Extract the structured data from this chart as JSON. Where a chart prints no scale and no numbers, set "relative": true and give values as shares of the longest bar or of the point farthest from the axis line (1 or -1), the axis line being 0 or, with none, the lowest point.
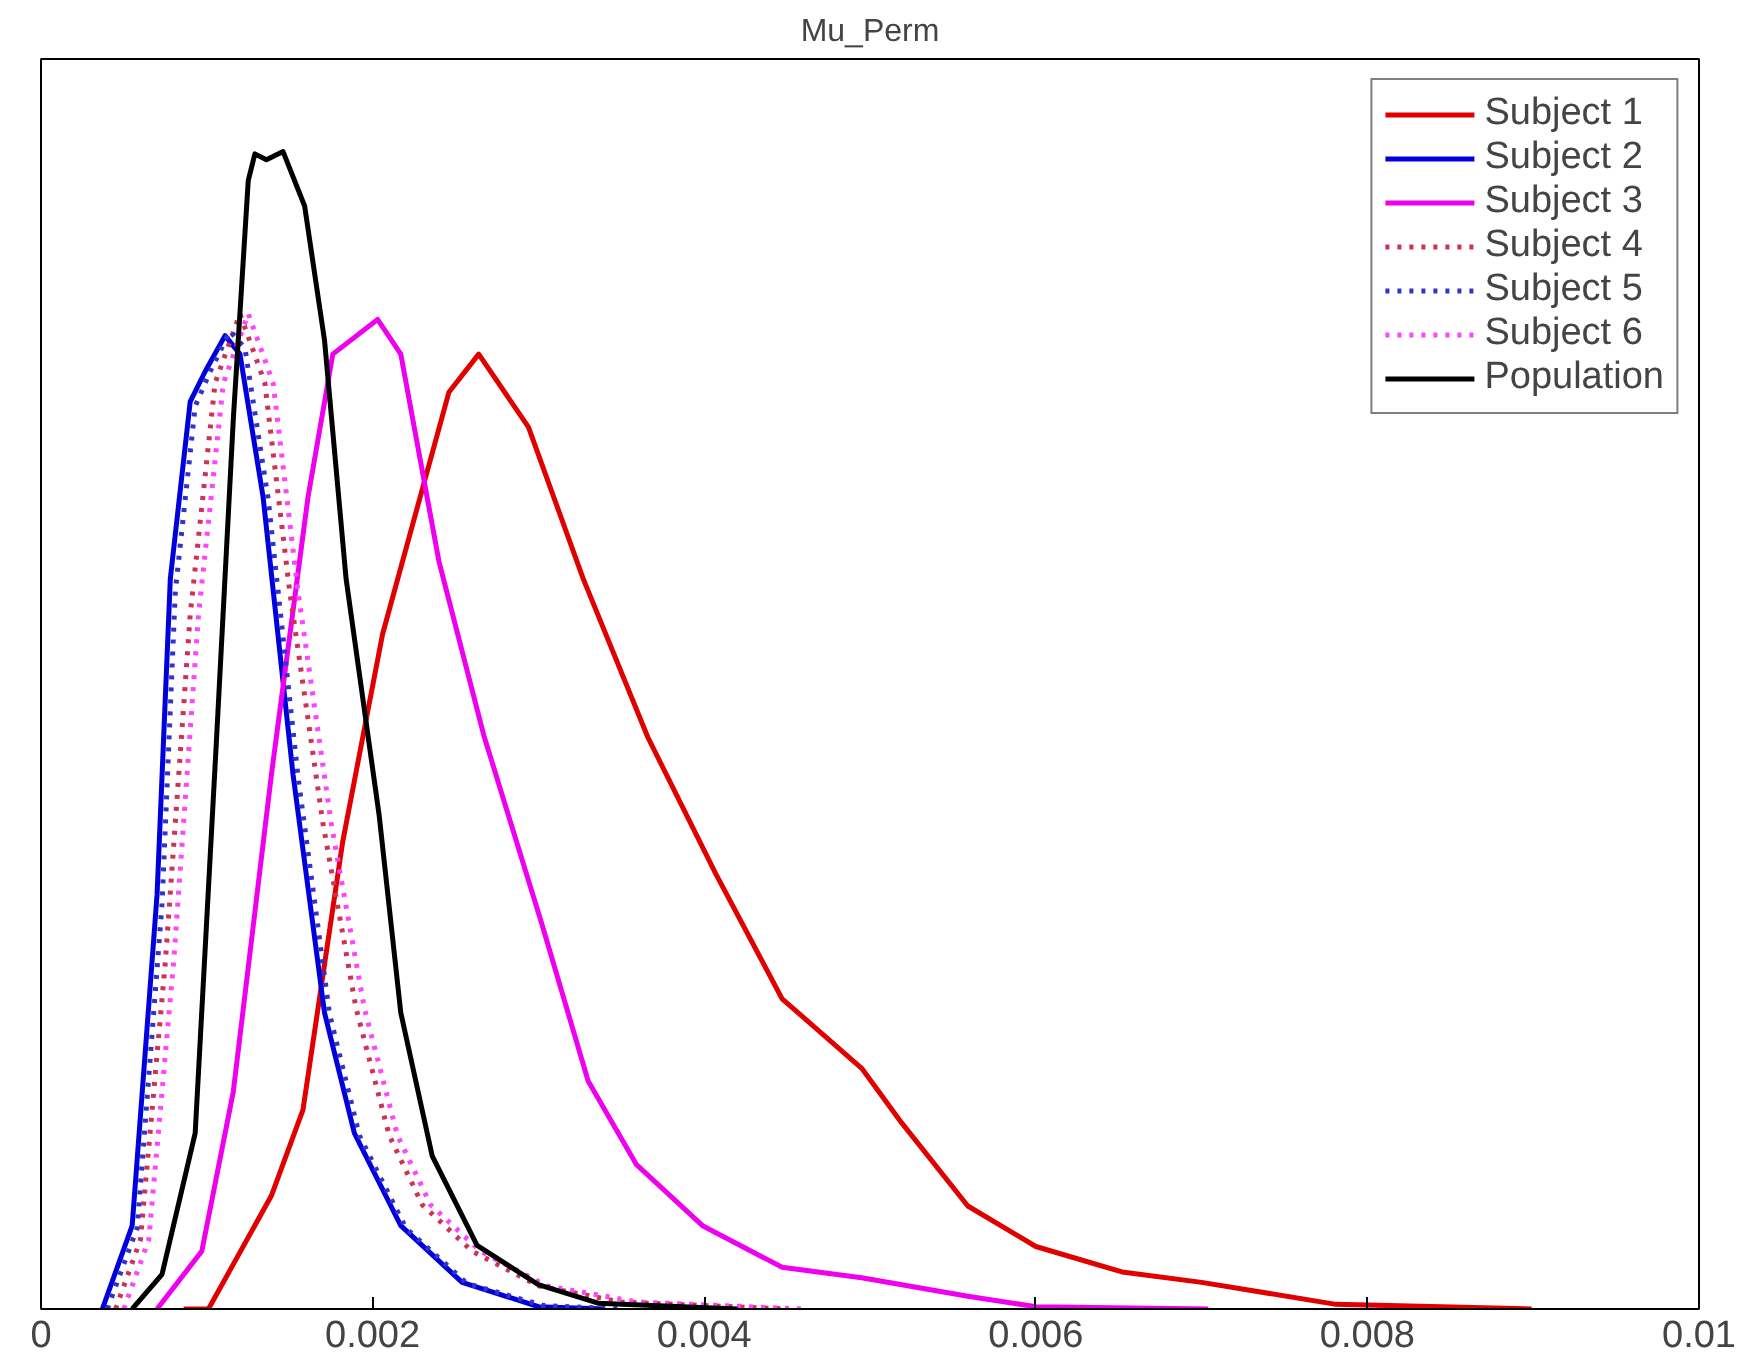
{
  "chart_data": {
    "type": "line",
    "title": "Mu_Perm",
    "relative": true,
    "xlim": [
      0,
      0.01
    ],
    "xticks": [
      0,
      0.002,
      0.004,
      0.006,
      0.008,
      0.01
    ],
    "grid": false,
    "legend": "top right",
    "line_style": "solid",
    "series": [
      {
        "name": "Subject 1",
        "color": "#e00000",
        "x": [
          0.00086,
          0.00101,
          0.00139,
          0.00158,
          0.00182,
          0.00206,
          0.00246,
          0.00264,
          0.00294,
          0.00327,
          0.00366,
          0.00407,
          0.00447,
          0.00495,
          0.00519,
          0.00559,
          0.006,
          0.00652,
          0.007,
          0.00781,
          0.00899
        ],
        "values": [
          0,
          0,
          0.098,
          0.172,
          0.404,
          0.583,
          0.792,
          0.825,
          0.762,
          0.631,
          0.494,
          0.376,
          0.268,
          0.208,
          0.161,
          0.089,
          0.054,
          0.032,
          0.023,
          0.004,
          0
        ]
      },
      {
        "name": "Subject 2",
        "color": "#0000dd",
        "x": [
          0.00037,
          0.00055,
          0.0007,
          0.00078,
          0.0009,
          0.00099,
          0.00111,
          0.0012,
          0.00134,
          0.00152,
          0.00171,
          0.00189,
          0.00217,
          0.00254,
          0.003,
          0.0034
        ],
        "values": [
          0,
          0.072,
          0.358,
          0.631,
          0.784,
          0.81,
          0.841,
          0.825,
          0.701,
          0.462,
          0.256,
          0.152,
          0.072,
          0.023,
          0.002,
          0
        ]
      },
      {
        "name": "Subject 3",
        "color": "#ee00ee",
        "x": [
          0.0007,
          0.00097,
          0.00116,
          0.00139,
          0.00161,
          0.00176,
          0.00203,
          0.00217,
          0.0024,
          0.00267,
          0.00302,
          0.0033,
          0.00359,
          0.00399,
          0.00447,
          0.00495,
          0.00559,
          0.006,
          0.00704
        ],
        "values": [
          0,
          0.05,
          0.188,
          0.462,
          0.701,
          0.825,
          0.855,
          0.825,
          0.646,
          0.496,
          0.333,
          0.197,
          0.125,
          0.072,
          0.036,
          0.027,
          0.011,
          0.002,
          0
        ]
      },
      {
        "name": "Subject 4",
        "color": "#cc3355",
        "line_style": "dotted",
        "x": [
          0.00045,
          0.0006,
          0.00075,
          0.0009,
          0.00105,
          0.0012,
          0.00135,
          0.0015,
          0.0017,
          0.0019,
          0.0021,
          0.0023,
          0.0026,
          0.003,
          0.0035,
          0.0045
        ],
        "values": [
          0,
          0.06,
          0.3,
          0.6,
          0.8,
          0.86,
          0.8,
          0.62,
          0.42,
          0.26,
          0.15,
          0.09,
          0.05,
          0.02,
          0.006,
          0
        ]
      },
      {
        "name": "Subject 5",
        "color": "#3333cc",
        "line_style": "dotted",
        "x": [
          0.0004,
          0.00058,
          0.00073,
          0.00081,
          0.00093,
          0.00102,
          0.00114,
          0.00123,
          0.00137,
          0.00155,
          0.00174,
          0.00192,
          0.0022,
          0.00257,
          0.00303,
          0.0035
        ],
        "values": [
          0,
          0.07,
          0.35,
          0.62,
          0.78,
          0.81,
          0.845,
          0.83,
          0.7,
          0.46,
          0.255,
          0.15,
          0.07,
          0.022,
          0.003,
          0
        ]
      },
      {
        "name": "Subject 6",
        "color": "#ff44ff",
        "line_style": "dotted",
        "x": [
          0.0005,
          0.00065,
          0.0008,
          0.00095,
          0.0011,
          0.00125,
          0.0014,
          0.00155,
          0.00175,
          0.00195,
          0.00215,
          0.00235,
          0.00265,
          0.00305,
          0.0036,
          0.0046
        ],
        "values": [
          0,
          0.06,
          0.3,
          0.6,
          0.8,
          0.86,
          0.8,
          0.62,
          0.42,
          0.26,
          0.15,
          0.09,
          0.05,
          0.02,
          0.006,
          0
        ]
      },
      {
        "name": "Population",
        "color": "#000000",
        "x": [
          0.00055,
          0.00073,
          0.00093,
          0.00106,
          0.00116,
          0.00125,
          0.00129,
          0.00136,
          0.00146,
          0.00159,
          0.00171,
          0.00184,
          0.00204,
          0.00217,
          0.00236,
          0.00263,
          0.003,
          0.00336,
          0.0042
        ],
        "values": [
          0,
          0.03,
          0.152,
          0.496,
          0.769,
          0.975,
          0.998,
          0.993,
          1.0,
          0.953,
          0.837,
          0.631,
          0.426,
          0.256,
          0.132,
          0.055,
          0.021,
          0.005,
          0
        ]
      }
    ]
  }
}
